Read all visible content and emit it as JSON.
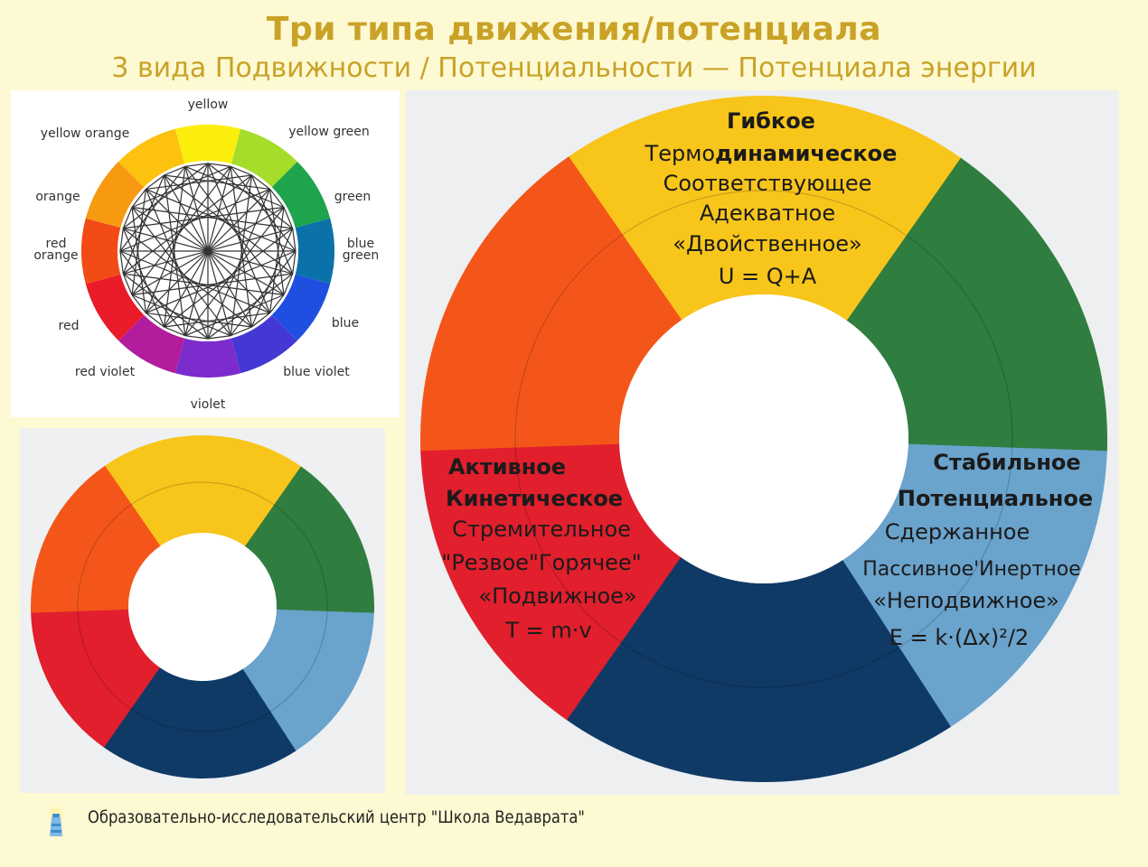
{
  "header": {
    "title": "Три типа движения/потенциала",
    "subtitle": "3 вида Подвижности / Потенциальности — Потенциала энергии"
  },
  "color_wheel": {
    "labels": [
      "yellow",
      "yellow green",
      "green",
      "blue green",
      "blue",
      "blue violet",
      "violet",
      "red violet",
      "red",
      "red orange",
      "orange",
      "yellow orange"
    ],
    "colors": [
      "#fcee0c",
      "#a5dd2a",
      "#1ea44c",
      "#0b72a9",
      "#1f4fe0",
      "#4438d4",
      "#7c2bcc",
      "#b11d9c",
      "#ea1b29",
      "#f24b16",
      "#f79a11",
      "#fdc110"
    ]
  },
  "big_ring": {
    "top": {
      "title": "Гибкое",
      "line1_pre": "Термо",
      "line1_bold": "динамическое",
      "lines": [
        "Соответствующее",
        "Адекватное",
        "«Двойственное»"
      ],
      "formula": "U = Q+A"
    },
    "left": {
      "title1": "Активное",
      "title2": "Кинетическое",
      "lines": [
        "Стремительное",
        "\"Резвое\"Горячее\"",
        "«Подвижное»"
      ],
      "formula": "T = m·v"
    },
    "right": {
      "title1": "Стабильное",
      "title2": "Потенциальное",
      "lines": [
        "Сдержанное",
        "Пассивное'Инертное",
        "«Неподвижное»"
      ],
      "formula": "E = k·(Δx)²/2"
    }
  },
  "ring_colors": {
    "yellow": "#f8c51b",
    "green": "#2f7d3f",
    "light_blue": "#6aa3cc",
    "navy": "#0f3a66",
    "red": "#e11f2d",
    "orange": "#f4561a"
  },
  "footer": {
    "text": "Образовательно-исследовательский центр \"Школа Ведаврата\""
  }
}
